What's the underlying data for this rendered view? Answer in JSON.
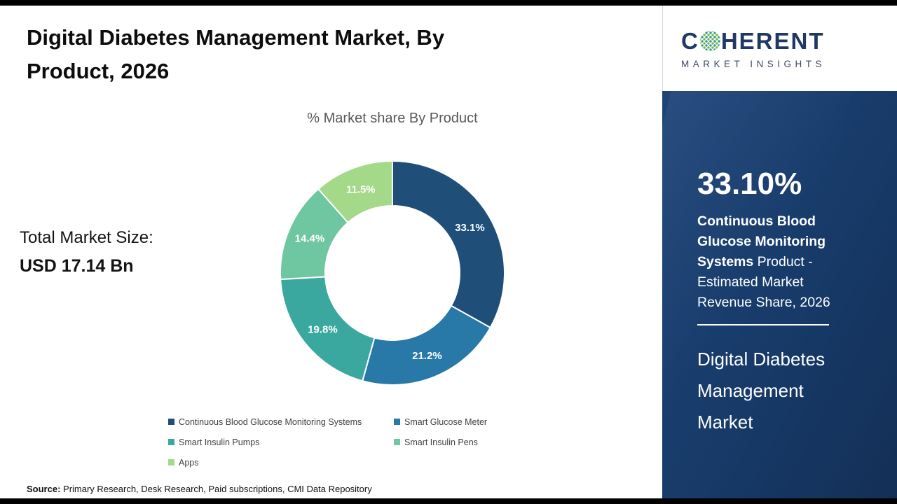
{
  "page": {
    "title": "Digital Diabetes Management Market, By Product, 2026",
    "source_label": "Source:",
    "source_text": " Primary Research, Desk Research, Paid subscriptions, CMI Data Repository"
  },
  "market": {
    "total_label": "Total Market Size:",
    "total_value": "USD 17.14 Bn"
  },
  "chart_data": {
    "type": "pie",
    "donut": true,
    "title": "% Market share By Product",
    "categories": [
      "Continuous Blood Glucose Monitoring Systems",
      "Smart Glucose Meter",
      "Smart Insulin Pumps",
      "Smart Insulin Pens",
      "Apps"
    ],
    "values": [
      33.1,
      21.2,
      19.8,
      14.4,
      11.5
    ],
    "labels": [
      "33.1%",
      "21.2%",
      "19.8%",
      "14.4%",
      "11.5%"
    ],
    "colors": [
      "#1F4E79",
      "#2878A8",
      "#3BA8A0",
      "#6FC7A1",
      "#A5D98A"
    ],
    "start_angle_deg": 0,
    "direction": "clockwise",
    "legend_position": "bottom"
  },
  "sidebar": {
    "logo": {
      "brand_prefix": "C",
      "brand_suffix": "HERENT",
      "tagline": "MARKET INSIGHTS"
    },
    "highlight_value": "33.10%",
    "highlight_bold": "Continuous Blood Glucose Monitoring Systems",
    "highlight_rest": " Product - Estimated Market Revenue Share, 2026",
    "market_name": "Digital Diabetes Management Market"
  }
}
